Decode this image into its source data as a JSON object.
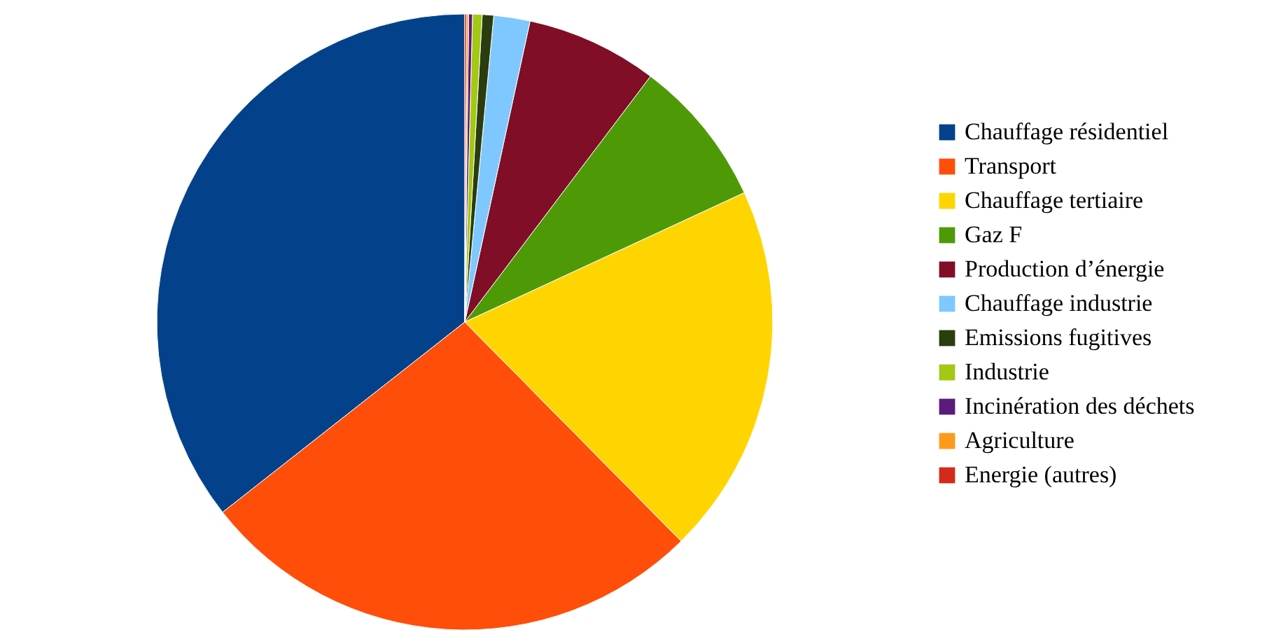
{
  "chart_data": {
    "type": "pie",
    "categories": [
      "Chauffage résidentiel",
      "Transport",
      "Chauffage tertiaire",
      "Gaz F",
      "Production d’énergie",
      "Chauffage industrie",
      "Emissions fugitives",
      "Industrie",
      "Incinération des déchets",
      "Agriculture",
      "Energie (autres)"
    ],
    "values": [
      35.6,
      26.8,
      19.5,
      7.8,
      6.9,
      1.9,
      0.6,
      0.5,
      0.2,
      0.1,
      0.1
    ],
    "colors": [
      "#03428a",
      "#ff4e0a",
      "#ffd500",
      "#4e9a06",
      "#800e26",
      "#7fc8ff",
      "#2a3d0f",
      "#a3c914",
      "#5c1a7a",
      "#ff9a1a",
      "#d42a1a"
    ],
    "legend": "right"
  }
}
